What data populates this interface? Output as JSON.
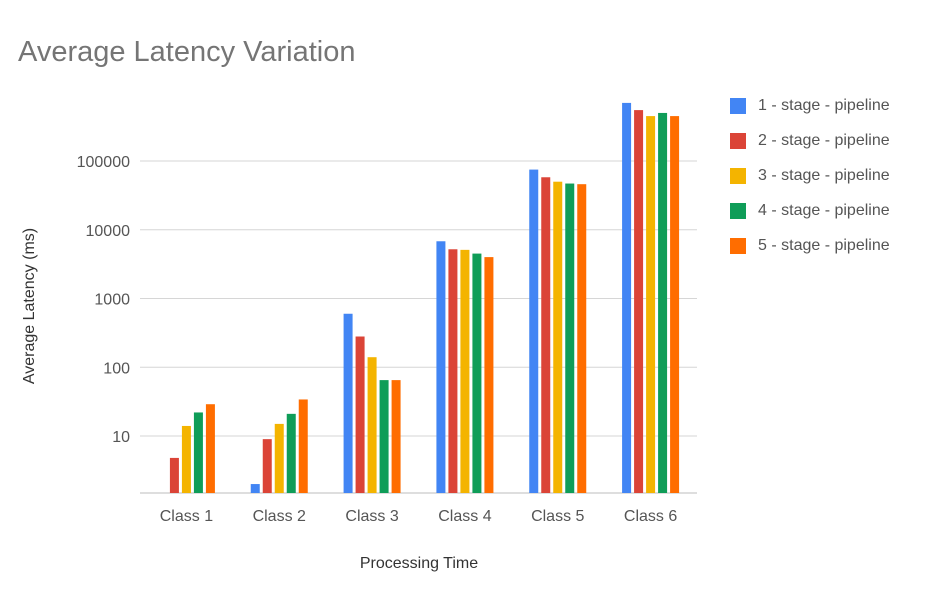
{
  "chart_data": {
    "type": "bar",
    "title": "Average Latency Variation",
    "xlabel": "Processing Time",
    "ylabel": "Average Latency (ms)",
    "yscale": "log",
    "ylim": [
      1.5,
      800000
    ],
    "yticks": [
      10,
      100,
      1000,
      10000,
      100000
    ],
    "ytick_labels": [
      "10",
      "100",
      "1000",
      "10000",
      "100000"
    ],
    "grid": true,
    "legend_position": "right",
    "categories": [
      "Class 1",
      "Class 2",
      "Class 3",
      "Class 4",
      "Class 5",
      "Class 6"
    ],
    "series": [
      {
        "name": "1 - stage - pipeline",
        "color": "#4285F4",
        "values": [
          null,
          2,
          600,
          6800,
          75000,
          700000
        ]
      },
      {
        "name": "2 - stage - pipeline",
        "color": "#DB4437",
        "values": [
          4.8,
          9,
          280,
          5200,
          58000,
          550000
        ]
      },
      {
        "name": "3 - stage - pipeline",
        "color": "#F4B400",
        "values": [
          14,
          15,
          140,
          5100,
          50000,
          450000
        ]
      },
      {
        "name": "4 - stage - pipeline",
        "color": "#0F9D58",
        "values": [
          22,
          21,
          65,
          4500,
          47000,
          500000
        ]
      },
      {
        "name": "5 - stage - pipeline",
        "color": "#FF6D00",
        "values": [
          29,
          34,
          65,
          4000,
          46000,
          450000
        ]
      }
    ]
  }
}
